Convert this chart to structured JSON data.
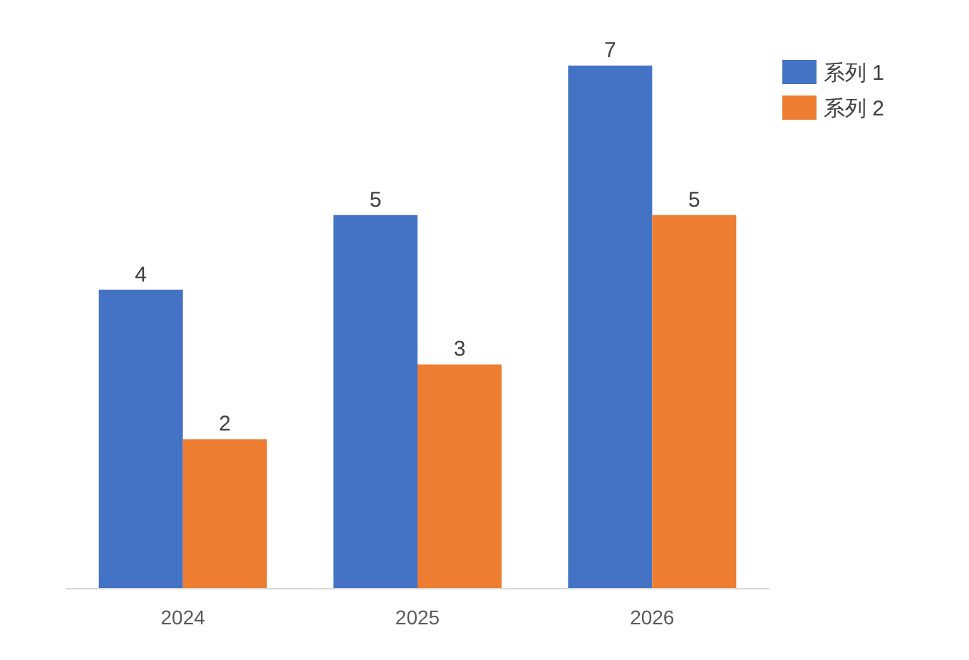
{
  "chart_data": {
    "type": "bar",
    "categories": [
      "2024",
      "2025",
      "2026"
    ],
    "series": [
      {
        "name": "系列 1",
        "color": "#4472c4",
        "values": [
          4,
          5,
          7
        ]
      },
      {
        "name": "系列 2",
        "color": "#ed7d31",
        "values": [
          2,
          3,
          5
        ]
      }
    ],
    "data_labels": true,
    "legend": "top right"
  }
}
